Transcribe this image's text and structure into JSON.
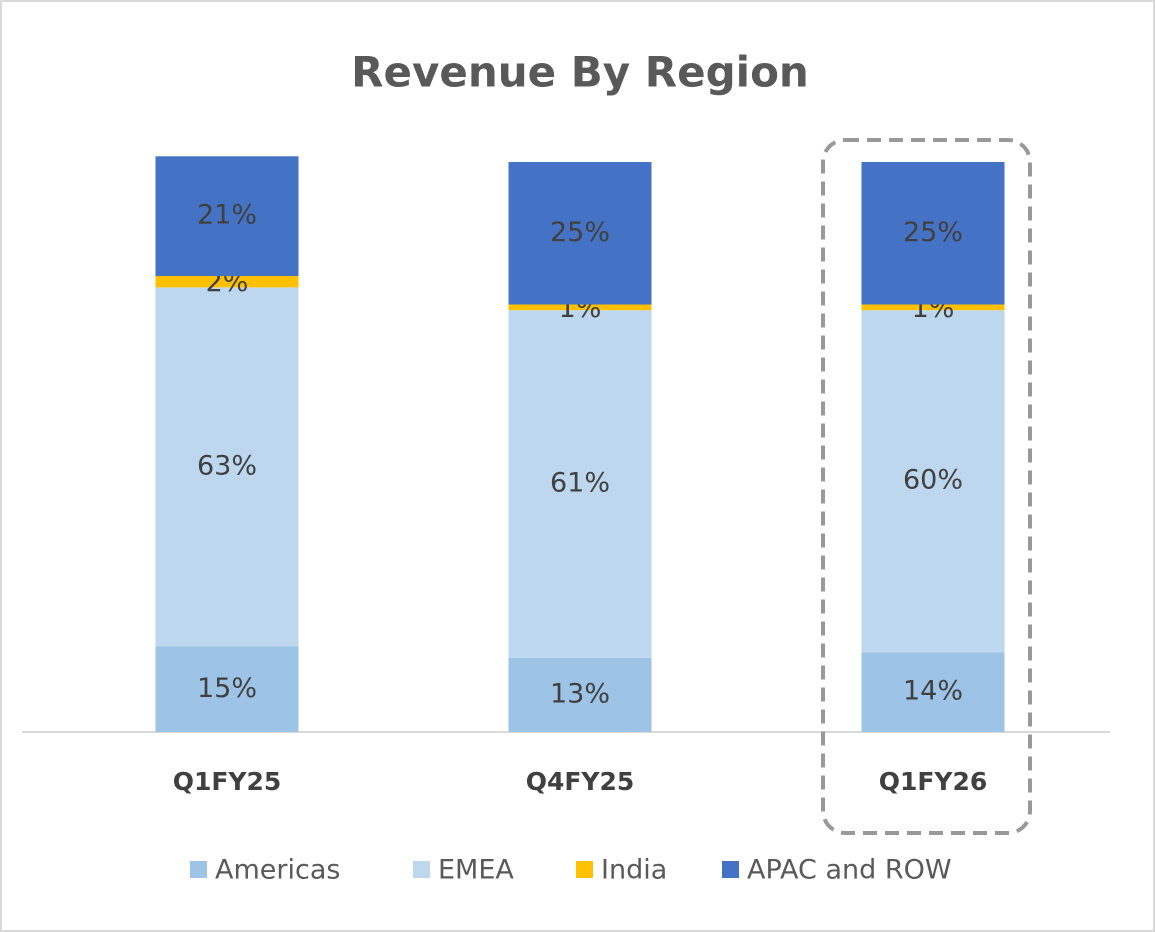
{
  "chart_data": {
    "type": "stacked_bar",
    "title": "Revenue By Region",
    "categories": [
      "Q1FY25",
      "Q4FY25",
      "Q1FY26"
    ],
    "series": [
      {
        "name": "Americas",
        "color": "#9dc3e6",
        "values": [
          15,
          13,
          14
        ],
        "value_labels": [
          "15%",
          "13%",
          "14%"
        ]
      },
      {
        "name": "EMEA",
        "color": "#bdd7ee",
        "values": [
          63,
          61,
          60
        ],
        "value_labels": [
          "63%",
          "61%",
          "60%"
        ]
      },
      {
        "name": "India",
        "color": "#ffc000",
        "values": [
          2,
          1,
          1
        ],
        "value_labels": [
          "2%",
          "1%",
          "1%"
        ]
      },
      {
        "name": "APAC and ROW",
        "color": "#4472c4",
        "values": [
          21,
          25,
          25
        ],
        "value_labels": [
          "21%",
          "25%",
          "25%"
        ]
      }
    ],
    "ylim": [
      0,
      100
    ],
    "legend": "bottom"
  }
}
